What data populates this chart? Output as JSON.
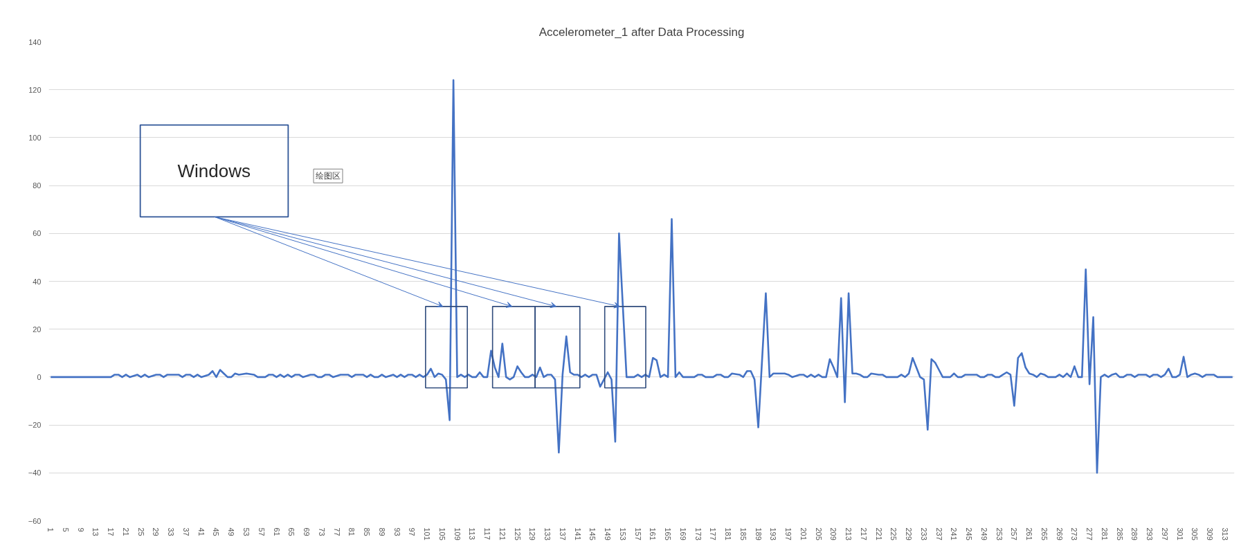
{
  "chart_data": {
    "type": "line",
    "title": "Accelerometer_1 after Data Processing",
    "x": [
      1,
      17,
      18,
      19,
      20,
      21,
      22,
      24,
      25,
      26,
      27,
      29,
      30,
      31,
      32,
      35,
      36,
      37,
      38,
      39,
      40,
      41,
      43,
      44,
      45,
      46,
      47,
      48,
      49,
      50,
      51,
      53,
      55,
      56,
      58,
      59,
      60,
      61,
      62,
      63,
      64,
      65,
      66,
      67,
      68,
      70,
      71,
      72,
      73,
      74,
      75,
      76,
      78,
      80,
      81,
      82,
      84,
      85,
      86,
      87,
      88,
      89,
      90,
      92,
      93,
      94,
      95,
      96,
      97,
      98,
      99,
      100,
      101,
      102,
      103,
      104,
      105,
      106,
      107,
      108,
      109,
      110,
      111,
      112,
      113,
      114,
      115,
      116,
      117,
      118,
      119,
      120,
      121,
      122,
      123,
      124,
      125,
      126,
      127,
      128,
      129,
      130,
      131,
      132,
      133,
      134,
      135,
      136,
      137,
      138,
      139,
      140,
      141,
      142,
      143,
      144,
      145,
      146,
      147,
      148,
      149,
      150,
      151,
      152,
      153,
      154,
      155,
      156,
      157,
      158,
      159,
      160,
      161,
      162,
      163,
      164,
      165,
      166,
      167,
      168,
      169,
      172,
      173,
      174,
      175,
      177,
      178,
      179,
      180,
      181,
      182,
      184,
      185,
      186,
      187,
      188,
      189,
      190,
      191,
      192,
      193,
      196,
      197,
      198,
      200,
      201,
      202,
      203,
      204,
      205,
      206,
      207,
      208,
      209,
      210,
      211,
      212,
      213,
      214,
      215,
      216,
      217,
      218,
      219,
      221,
      222,
      223,
      226,
      227,
      228,
      229,
      230,
      231,
      232,
      233,
      234,
      235,
      236,
      237,
      238,
      240,
      241,
      242,
      243,
      244,
      247,
      248,
      249,
      250,
      251,
      252,
      253,
      254,
      255,
      256,
      257,
      258,
      259,
      260,
      261,
      262,
      263,
      264,
      265,
      266,
      268,
      269,
      270,
      271,
      272,
      273,
      274,
      275,
      276,
      277,
      278,
      279,
      280,
      281,
      282,
      283,
      284,
      285,
      286,
      287,
      288,
      289,
      290,
      292,
      293,
      294,
      295,
      296,
      297,
      298,
      299,
      300,
      301,
      302,
      303,
      304,
      305,
      306,
      307,
      308,
      310,
      311,
      315
    ],
    "values": [
      0,
      0,
      1,
      1,
      0,
      1,
      0,
      1,
      0,
      1,
      0,
      1,
      1,
      0,
      1,
      1,
      0,
      1,
      1,
      0,
      1,
      0,
      1,
      2.5,
      0,
      3,
      1.5,
      0,
      0,
      1.5,
      1,
      1.5,
      1,
      0,
      0,
      1,
      1,
      0,
      1,
      0,
      1,
      0,
      1,
      1,
      0,
      1,
      1,
      0,
      0,
      1,
      1,
      0,
      1,
      1,
      0,
      1,
      1,
      0,
      1,
      0,
      0,
      1,
      0,
      1,
      0,
      1,
      0,
      1,
      1,
      0,
      1,
      0,
      1,
      3.5,
      0,
      1.5,
      1,
      -1,
      -18,
      124,
      0,
      1,
      0,
      1,
      0,
      0,
      2,
      0,
      0,
      11,
      4,
      0,
      14,
      0,
      -1,
      0,
      4.5,
      2,
      0,
      0,
      1,
      0,
      4,
      0,
      1,
      1,
      -1,
      -31.5,
      1,
      17,
      2,
      1,
      1,
      0,
      1,
      0,
      1,
      1,
      -4,
      -1,
      2,
      -1,
      -27,
      60,
      30,
      0,
      0,
      0,
      1,
      0,
      1,
      0,
      8,
      7,
      0,
      1,
      0,
      66,
      0,
      2,
      0,
      0,
      1,
      1,
      0,
      0,
      1,
      1,
      0,
      0,
      1.5,
      1,
      0,
      2.5,
      2.5,
      -1,
      -21,
      7,
      35,
      0,
      1.5,
      1.5,
      1,
      0,
      1,
      1,
      0,
      1,
      0,
      1,
      0,
      0,
      7.5,
      4,
      0,
      33,
      -10.5,
      35,
      1.5,
      1.5,
      1,
      0,
      0,
      1.5,
      1,
      1,
      0,
      0,
      1,
      0,
      1.5,
      8,
      4,
      0,
      -1,
      -22,
      7.5,
      6,
      3,
      0,
      0,
      1.5,
      0,
      0,
      1,
      1,
      0,
      0,
      1,
      1,
      0,
      0,
      1,
      2,
      1,
      -12,
      8,
      10,
      4,
      1.5,
      1,
      0,
      1.5,
      1,
      0,
      0,
      1,
      0,
      1.5,
      0,
      4.5,
      0,
      0,
      45,
      -3,
      25,
      -40,
      0,
      1,
      0,
      1,
      1.5,
      0,
      0,
      1,
      1,
      0,
      1,
      1,
      0,
      1,
      1,
      0,
      1,
      3.5,
      0,
      0,
      1,
      8.5,
      0,
      1,
      1.5,
      1,
      0,
      1,
      1,
      0,
      0
    ],
    "color": "#4472c4",
    "xlim": [
      0.5,
      315.5
    ],
    "xticks": [
      1,
      5,
      9,
      13,
      17,
      21,
      25,
      29,
      33,
      37,
      41,
      45,
      49,
      53,
      57,
      61,
      65,
      69,
      73,
      77,
      81,
      85,
      89,
      93,
      97,
      101,
      105,
      109,
      113,
      117,
      121,
      125,
      129,
      133,
      137,
      141,
      145,
      149,
      153,
      157,
      161,
      165,
      169,
      173,
      177,
      181,
      185,
      189,
      193,
      197,
      201,
      205,
      209,
      213,
      217,
      221,
      225,
      229,
      233,
      237,
      241,
      245,
      249,
      253,
      257,
      261,
      265,
      269,
      273,
      277,
      281,
      285,
      289,
      293,
      297,
      301,
      305,
      309,
      313
    ],
    "ylim": [
      -60,
      140
    ],
    "yticks": [
      -60,
      -40,
      -20,
      0,
      20,
      40,
      60,
      80,
      100,
      120,
      140
    ],
    "grid": "y",
    "annotations": [
      "Windows",
      "绘图区"
    ]
  }
}
